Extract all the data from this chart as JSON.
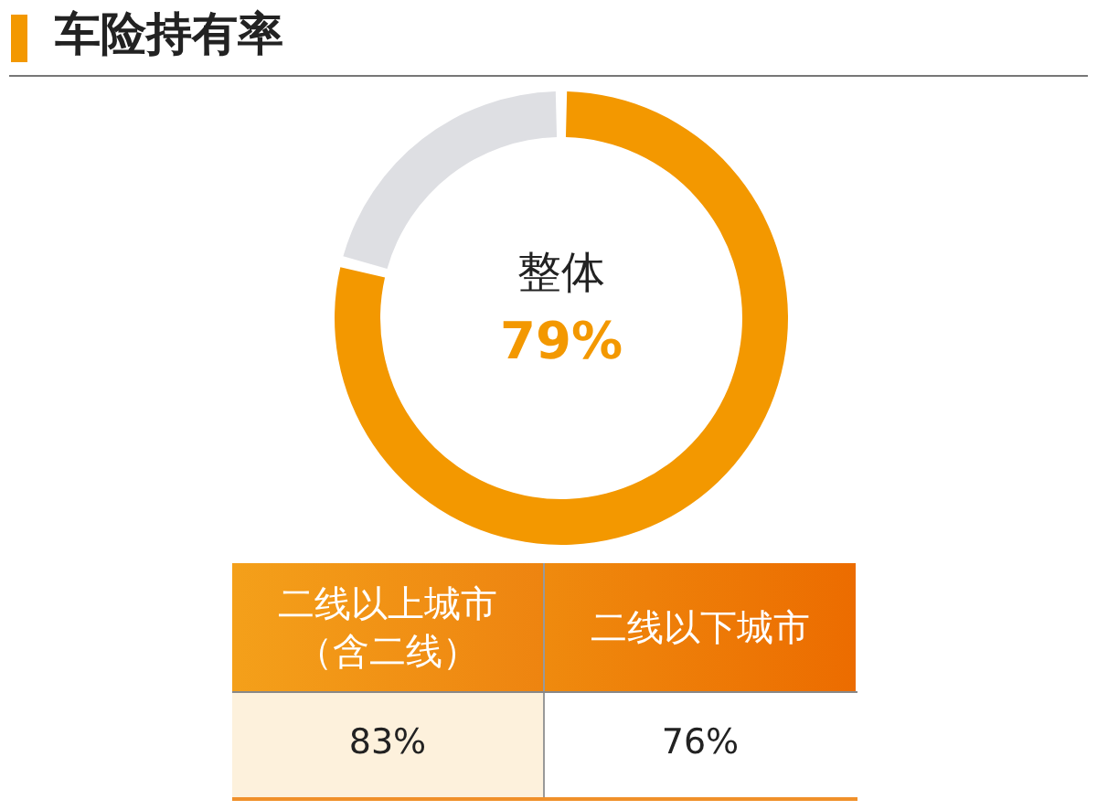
{
  "chart_data": [
    {
      "type": "donut",
      "title": "车险持有率",
      "categories": [
        "整体",
        null
      ],
      "values": [
        79,
        21
      ],
      "colors": [
        "#f39800",
        "#dedfe3"
      ],
      "value_labels": [
        "79%",
        null
      ]
    },
    {
      "type": "other",
      "categories": [
        "二线以上城市（含二线）",
        "二线以下城市"
      ],
      "value_labels": [
        "83%",
        "76%"
      ]
    }
  ]
}
